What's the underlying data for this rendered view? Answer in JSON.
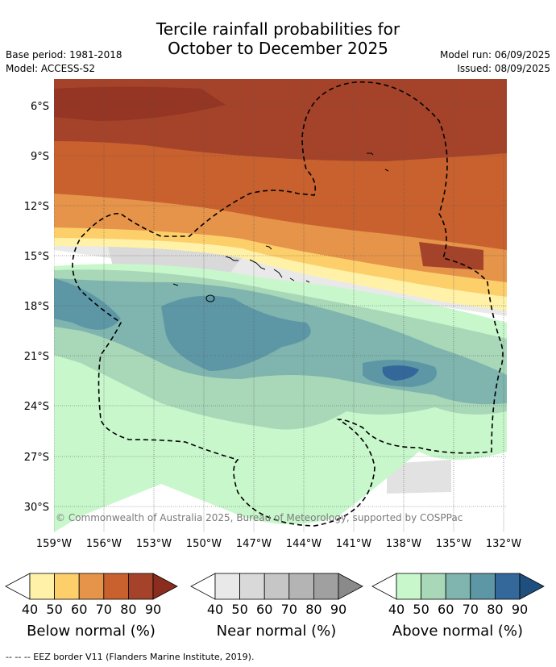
{
  "title_line1": "Tercile rainfall probabilities for",
  "title_line2": "October to December 2025",
  "base_period": "Base period: 1981-2018",
  "model": "Model: ACCESS-S2",
  "model_run": "Model run: 06/09/2025",
  "issued": "Issued: 08/09/2025",
  "copyright": "© Commonwealth of Australia 2025, Bureau of Meteorology, supported by COSPPac",
  "lat_labels": [
    "6°S",
    "9°S",
    "12°S",
    "15°S",
    "18°S",
    "21°S",
    "24°S",
    "27°S",
    "30°S"
  ],
  "lon_labels": [
    "159°W",
    "156°W",
    "153°W",
    "150°W",
    "147°W",
    "144°W",
    "141°W",
    "138°W",
    "135°W",
    "132°W"
  ],
  "legend": {
    "ticks": [
      "40",
      "50",
      "60",
      "70",
      "80",
      "90"
    ],
    "below_title": "Below normal (%)",
    "near_title": "Near normal (%)",
    "above_title": "Above normal (%)",
    "below_colors": [
      "#fff2a8",
      "#fdcf6b",
      "#e5944a",
      "#c8612e",
      "#a5432a",
      "#8a2d1f"
    ],
    "near_colors": [
      "#e9e9e9",
      "#d9d9d9",
      "#c6c6c6",
      "#b4b4b4",
      "#a0a0a0",
      "#8a8a8a"
    ],
    "above_colors": [
      "#c8f7cc",
      "#a8d8b8",
      "#7fb5ae",
      "#5d97a6",
      "#34679a",
      "#1f4f7f"
    ]
  },
  "footnote": "-- -- -- EEZ border V11 (Flanders Marine Institute, 2019)."
}
